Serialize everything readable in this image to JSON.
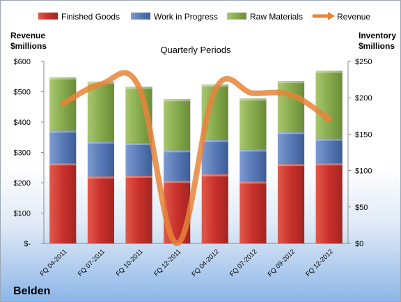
{
  "company": "Belden",
  "chart_data": {
    "type": "bar",
    "stacked": true,
    "title": "Quarterly Periods",
    "left_axis_label": [
      "Revenue",
      "$millions"
    ],
    "right_axis_label": [
      "Inventory",
      "$millions"
    ],
    "left_ticks": [
      "$-",
      "$100",
      "$200",
      "$300",
      "$400",
      "$500",
      "$600"
    ],
    "right_ticks": [
      "$0",
      "$50",
      "$100",
      "$150",
      "$200",
      "$250"
    ],
    "left_ylim": [
      0,
      600
    ],
    "right_ylim": [
      0,
      250
    ],
    "categories": [
      "FQ 04-2011",
      "FQ 07-2011",
      "FQ 10-2011",
      "FQ 12-2011",
      "FQ 04-2012",
      "FQ 07-2012",
      "FQ 09-2012",
      "FQ 12-2012"
    ],
    "series": [
      {
        "name": "Finished Goods",
        "axis": "right",
        "color": "#c0392b",
        "values": [
          110,
          92,
          93,
          86,
          95,
          85,
          109,
          110
        ]
      },
      {
        "name": "Work in Progress",
        "axis": "right",
        "color": "#4f6fa8",
        "values": [
          45,
          48,
          45,
          42,
          47,
          44,
          44,
          34
        ]
      },
      {
        "name": "Raw Materials",
        "axis": "right",
        "color": "#7fa447",
        "values": [
          73,
          82,
          77,
          70,
          76,
          70,
          70,
          93
        ]
      },
      {
        "name": "Revenue",
        "axis": "left",
        "color": "#e6843a",
        "type": "line",
        "values": [
          460,
          525,
          515,
          0,
          505,
          495,
          490,
          410
        ]
      }
    ],
    "legend_position": "top",
    "grid": false
  }
}
